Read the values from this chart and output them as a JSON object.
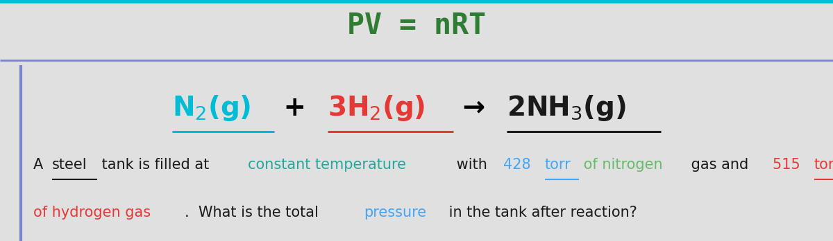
{
  "bg_color": "#e0e0e0",
  "body_bg": "#f0f0f0",
  "top_border_color": "#00bcd4",
  "left_border_color": "#7986cb",
  "divider_color": "#7986cb",
  "title_color": "#2e7d32",
  "eq_segments": [
    {
      "text": "N$_2$(g)",
      "color": "#00bcd4",
      "underline": true
    },
    {
      "text": " + ",
      "color": "#000000",
      "underline": false
    },
    {
      "text": "3H$_2$(g)",
      "color": "#e53935",
      "underline": true
    },
    {
      "text": " → ",
      "color": "#000000",
      "underline": false
    },
    {
      "text": "2NH$_3$(g)",
      "color": "#1a1a1a",
      "underline": true
    }
  ],
  "line1_segs": [
    {
      "text": "A ",
      "color": "#1a1a1a",
      "underline": false
    },
    {
      "text": "steel",
      "color": "#1a1a1a",
      "underline": true
    },
    {
      "text": " tank is filled at ",
      "color": "#1a1a1a",
      "underline": false
    },
    {
      "text": "constant temperature",
      "color": "#26a69a",
      "underline": false
    },
    {
      "text": " with ",
      "color": "#1a1a1a",
      "underline": false
    },
    {
      "text": "428 ",
      "color": "#42a5f5",
      "underline": false
    },
    {
      "text": "torr",
      "color": "#42a5f5",
      "underline": true
    },
    {
      "text": " of nitrogen",
      "color": "#66bb6a",
      "underline": false
    },
    {
      "text": " gas and ",
      "color": "#1a1a1a",
      "underline": false
    },
    {
      "text": "515 ",
      "color": "#e53935",
      "underline": false
    },
    {
      "text": "torr",
      "color": "#e53935",
      "underline": true
    }
  ],
  "line2_segs": [
    {
      "text": "of hydrogen gas",
      "color": "#e53935",
      "underline": false
    },
    {
      "text": ".  What is the total ",
      "color": "#1a1a1a",
      "underline": false
    },
    {
      "text": "pressure",
      "color": "#42a5f5",
      "underline": false
    },
    {
      "text": " in the tank after reaction?",
      "color": "#1a1a1a",
      "underline": false
    }
  ]
}
